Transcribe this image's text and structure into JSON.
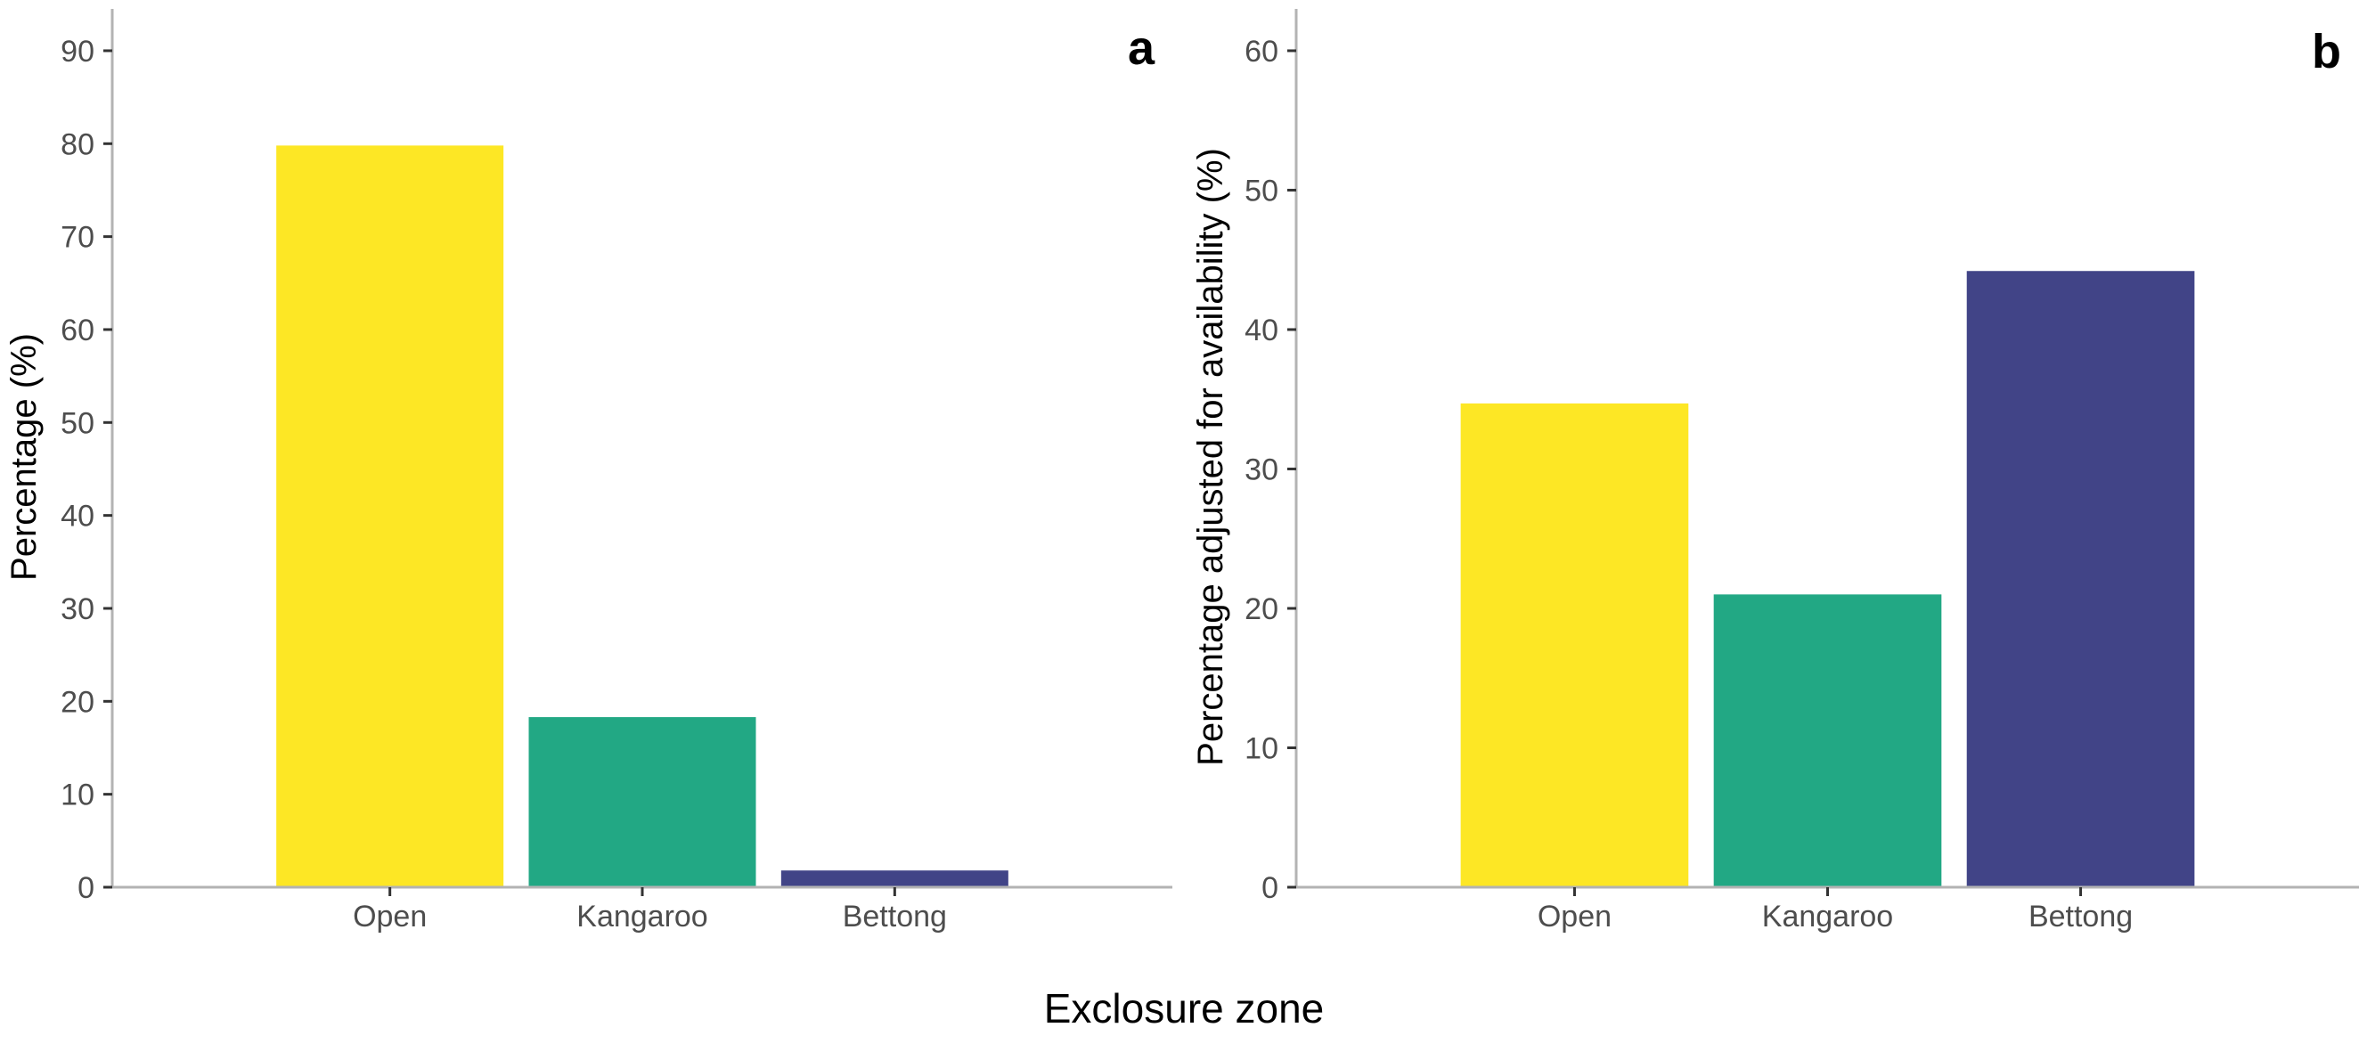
{
  "chart_data": [
    {
      "type": "bar",
      "panel_label": "a",
      "categories": [
        "Open",
        "Kangaroo",
        "Bettong"
      ],
      "values": [
        79.8,
        18.3,
        1.8
      ],
      "colors": [
        "#FDE725",
        "#22A884",
        "#414487"
      ],
      "ylabel": "Percentage (%)",
      "ylim": [
        0,
        94.5
      ],
      "yticks": [
        0,
        10,
        20,
        30,
        40,
        50,
        60,
        70,
        80,
        90
      ],
      "grid": false,
      "legend": "none"
    },
    {
      "type": "bar",
      "panel_label": "b",
      "categories": [
        "Open",
        "Kangaroo",
        "Bettong"
      ],
      "values": [
        34.7,
        21.0,
        44.2
      ],
      "colors": [
        "#FDE725",
        "#22A884",
        "#414487"
      ],
      "ylabel": "Percentage adjusted for availability (%)",
      "ylim": [
        0,
        63
      ],
      "yticks": [
        0,
        10,
        20,
        30,
        40,
        50,
        60
      ],
      "grid": false,
      "legend": "none"
    }
  ],
  "shared_xlabel": "Exclosure zone",
  "axis_color": "#b3b3b3"
}
